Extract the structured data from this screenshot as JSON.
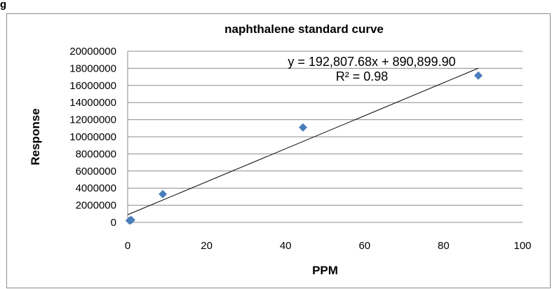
{
  "caption_fragment": "g",
  "chart_data": {
    "type": "scatter",
    "title": "naphthalene standard curve",
    "xlabel": "PPM",
    "ylabel": "Response",
    "xlim": [
      0,
      100
    ],
    "ylim": [
      0,
      20000000
    ],
    "x_ticks": [
      0,
      20,
      40,
      60,
      80,
      100
    ],
    "y_ticks": [
      0,
      2000000,
      4000000,
      6000000,
      8000000,
      10000000,
      12000000,
      14000000,
      16000000,
      18000000,
      20000000
    ],
    "x_tick_labels": [
      "0",
      "20",
      "40",
      "60",
      "80",
      "100"
    ],
    "y_tick_labels": [
      "0",
      "2000000",
      "4000000",
      "6000000",
      "8000000",
      "10000000",
      "12000000",
      "14000000",
      "16000000",
      "18000000",
      "20000000"
    ],
    "grid": "horizontal",
    "points": [
      {
        "x": 0.5,
        "y": 200000
      },
      {
        "x": 0.9,
        "y": 280000
      },
      {
        "x": 8.9,
        "y": 3300000
      },
      {
        "x": 44.4,
        "y": 11100000
      },
      {
        "x": 88.8,
        "y": 17150000
      }
    ],
    "trendline": {
      "slope": 192807.68,
      "intercept": 890899.9,
      "x_range": [
        0,
        88.8
      ],
      "equation_label": "y = 192,807.68x + 890,899.90",
      "r2_label": "R² = 0.98"
    },
    "colors": {
      "marker": "#4a7ebb",
      "line": "#000000",
      "grid": "#8c8c8c"
    }
  }
}
